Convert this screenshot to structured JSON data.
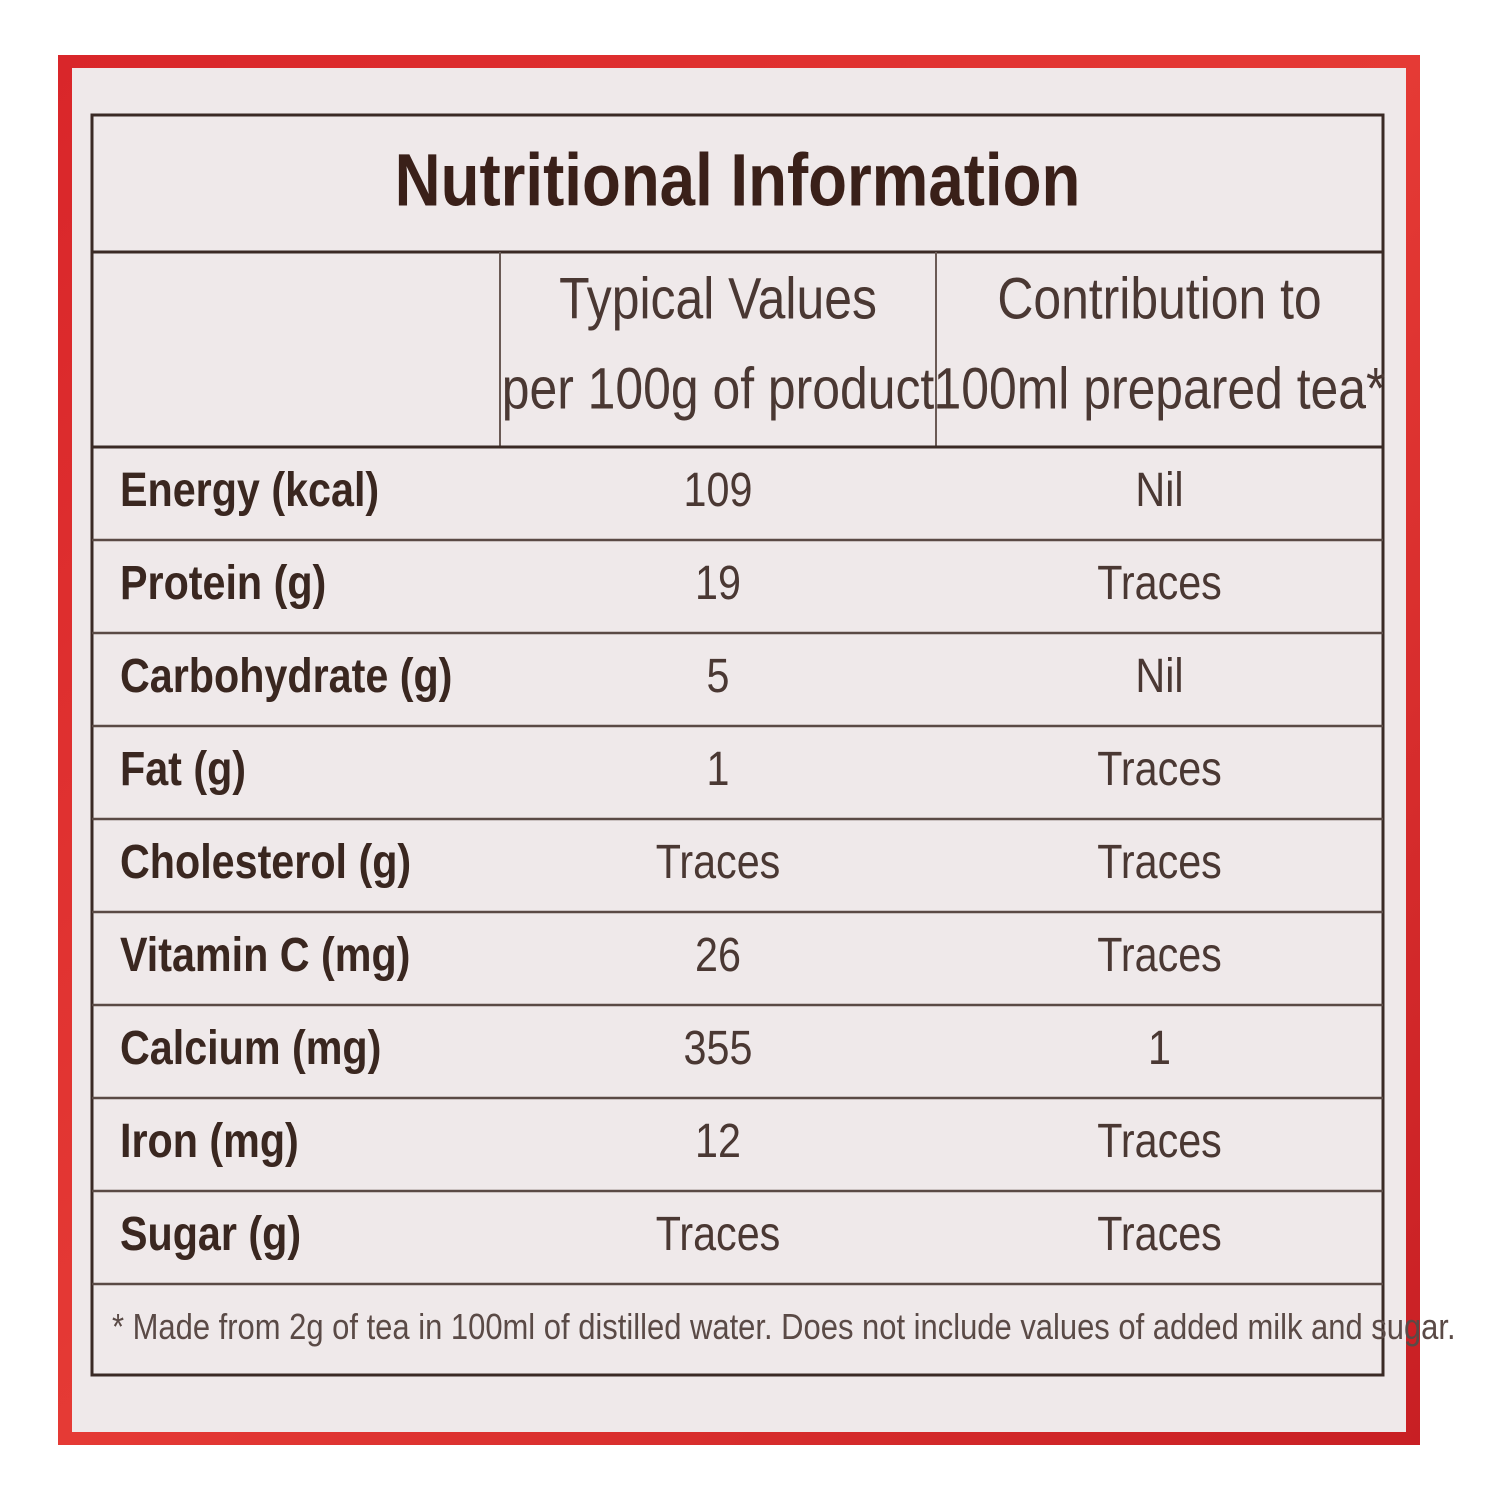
{
  "title": "Nutritional Information",
  "header": {
    "columns": [
      [
        "Typical Values",
        "per 100g of product"
      ],
      [
        "Contribution to",
        "100ml prepared tea*"
      ]
    ]
  },
  "table": {
    "rows": [
      [
        "Energy (kcal)",
        "109",
        "Nil"
      ],
      [
        "Protein (g)",
        "19",
        "Traces"
      ],
      [
        "Carbohydrate (g)",
        "5",
        "Nil"
      ],
      [
        "Fat (g)",
        "1",
        "Traces"
      ],
      [
        "Cholesterol (g)",
        "Traces",
        "Traces"
      ],
      [
        "Vitamin C (mg)",
        "26",
        "Traces"
      ],
      [
        "Calcium (mg)",
        "355",
        "1"
      ],
      [
        "Iron (mg)",
        "12",
        "Traces"
      ],
      [
        "Sugar (g)",
        "Traces",
        "Traces"
      ]
    ]
  },
  "footnote": "* Made from 2g of tea in 100ml of distilled water. Does not include values of added milk and sugar."
}
